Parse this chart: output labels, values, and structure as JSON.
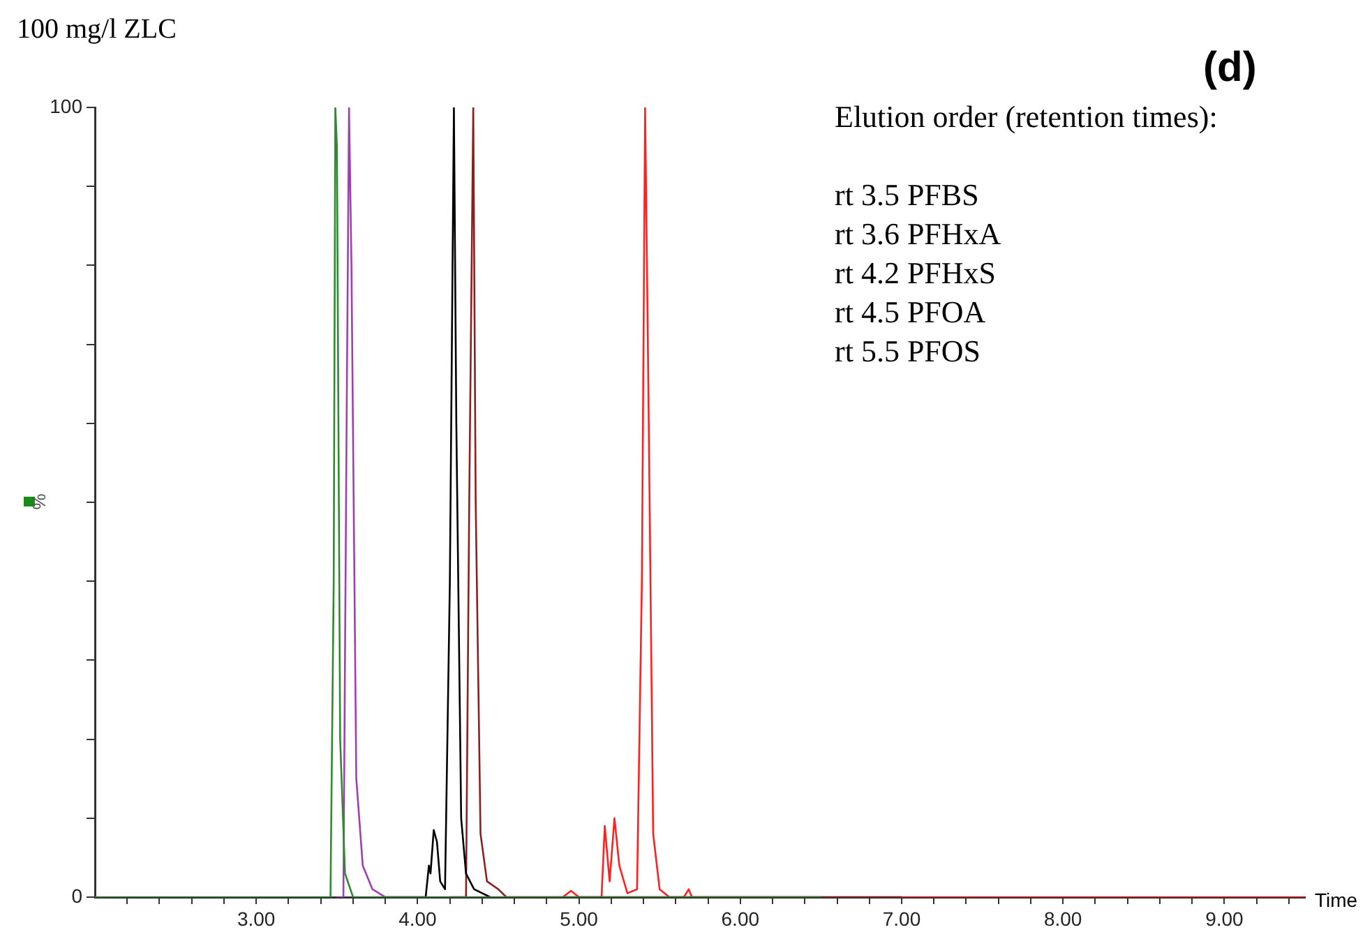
{
  "chart_data": {
    "type": "line",
    "title": "100 mg/l ZLC",
    "xlabel": "Time",
    "ylabel": "%",
    "marker": "none",
    "line_style": "solid",
    "annotations": [
      "(d)",
      "Elution order (retention times):",
      "rt 3.5 PFBS",
      "rt 3.6 PFHxA",
      "rt 4.2 PFHxS",
      "rt 4.5 PFOA",
      "rt 5.5 PFOS"
    ],
    "xlim": [
      2,
      9.5
    ],
    "xticks": [
      {
        "value": 2.2,
        "label": null
      },
      {
        "value": 2.4,
        "label": null
      },
      {
        "value": 2.6,
        "label": null
      },
      {
        "value": 2.8,
        "label": null
      },
      {
        "value": 3,
        "label": "3.00"
      },
      {
        "value": 3.2,
        "label": null
      },
      {
        "value": 3.4,
        "label": null
      },
      {
        "value": 3.6,
        "label": null
      },
      {
        "value": 3.8,
        "label": null
      },
      {
        "value": 4,
        "label": "4.00"
      },
      {
        "value": 4.2,
        "label": null
      },
      {
        "value": 4.4,
        "label": null
      },
      {
        "value": 4.6,
        "label": null
      },
      {
        "value": 4.8,
        "label": null
      },
      {
        "value": 5,
        "label": "5.00"
      },
      {
        "value": 5.2,
        "label": null
      },
      {
        "value": 5.4,
        "label": null
      },
      {
        "value": 5.6,
        "label": null
      },
      {
        "value": 5.8,
        "label": null
      },
      {
        "value": 6,
        "label": "6.00"
      },
      {
        "value": 6.2,
        "label": null
      },
      {
        "value": 6.4,
        "label": null
      },
      {
        "value": 6.6,
        "label": null
      },
      {
        "value": 6.8,
        "label": null
      },
      {
        "value": 7,
        "label": "7.00"
      },
      {
        "value": 7.2,
        "label": null
      },
      {
        "value": 7.4,
        "label": null
      },
      {
        "value": 7.6,
        "label": null
      },
      {
        "value": 7.8,
        "label": null
      },
      {
        "value": 8,
        "label": "8.00"
      },
      {
        "value": 8.2,
        "label": null
      },
      {
        "value": 8.4,
        "label": null
      },
      {
        "value": 8.6,
        "label": null
      },
      {
        "value": 8.8,
        "label": null
      },
      {
        "value": 9,
        "label": "9.00"
      },
      {
        "value": 9.2,
        "label": null
      },
      {
        "value": 9.4,
        "label": null
      }
    ],
    "ylim": [
      0,
      100
    ],
    "yticks": [
      0,
      {
        "value": 10,
        "label": null
      },
      {
        "value": 20,
        "label": null
      },
      {
        "value": 30,
        "label": null
      },
      {
        "value": 40,
        "label": null
      },
      {
        "value": 50,
        "label": null
      },
      {
        "value": 60,
        "label": null
      },
      {
        "value": 70,
        "label": null
      },
      {
        "value": 80,
        "label": null
      },
      {
        "value": 90,
        "label": null
      },
      100
    ],
    "series": [
      {
        "color": "#2e8b2e",
        "x": [
          2,
          3.4,
          3.46,
          3.48,
          3.49,
          3.5,
          3.52,
          3.55,
          3.6,
          6.5
        ],
        "values": [
          0,
          0,
          0,
          40,
          100,
          95,
          20,
          3,
          0,
          0
        ]
      },
      {
        "color": "#a040b0",
        "x": [
          3.5,
          3.54,
          3.56,
          3.575,
          3.59,
          3.62,
          3.66,
          3.72,
          3.8
        ],
        "values": [
          0,
          0,
          60,
          100,
          80,
          15,
          4,
          1,
          0
        ]
      },
      {
        "color": "#000000",
        "x": [
          3.8,
          4.05,
          4.07,
          4.08,
          4.1,
          4.12,
          4.14,
          4.17,
          4.2,
          4.225,
          4.24,
          4.27,
          4.3,
          4.35,
          4.45
        ],
        "values": [
          0,
          0,
          4,
          3,
          8.5,
          7,
          2,
          1,
          40,
          100,
          60,
          10,
          3,
          1,
          0
        ]
      },
      {
        "color": "#8b2020",
        "x": [
          4.2,
          4.3,
          4.32,
          4.345,
          4.36,
          4.39,
          4.43,
          4.5,
          4.55,
          6.5,
          7
        ],
        "values": [
          0,
          0,
          50,
          100,
          50,
          8,
          2,
          1,
          0,
          0,
          0
        ]
      },
      {
        "color": "#ff2020",
        "x": [
          4.9,
          4.95,
          5,
          5.14,
          5.16,
          5.19,
          5.22,
          5.25,
          5.3,
          5.36,
          5.39,
          5.41,
          5.43,
          5.46,
          5.5,
          5.56,
          5.65,
          5.68,
          5.7,
          7,
          9.5
        ],
        "values": [
          0,
          0.8,
          0,
          0,
          9,
          2,
          10,
          4,
          0.5,
          1,
          40,
          100,
          65,
          8,
          1,
          0,
          0,
          1,
          0,
          0,
          0
        ]
      }
    ]
  }
}
